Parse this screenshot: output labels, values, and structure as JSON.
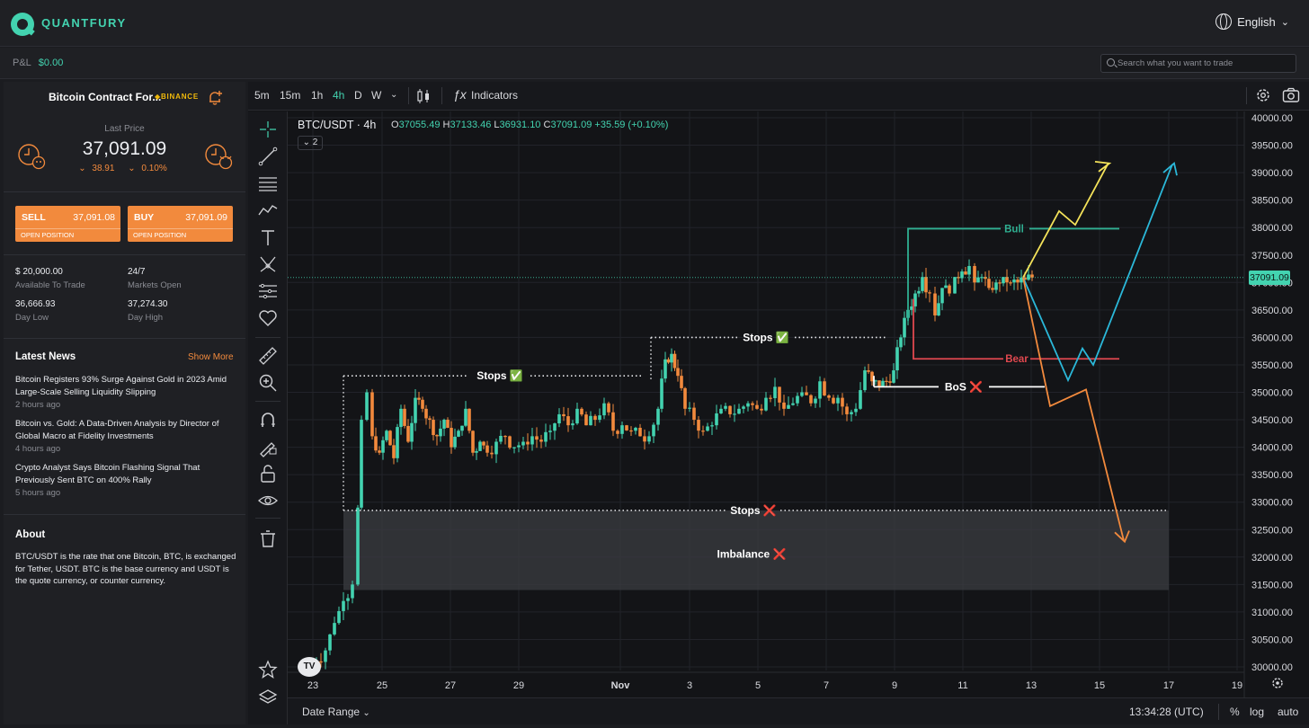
{
  "header": {
    "logo_text": "QUANTFURY",
    "language": "English"
  },
  "subbar": {
    "pnl_label": "P&L",
    "pnl_value": "$0.00",
    "search_placeholder": "Search what you want to trade"
  },
  "sidebar": {
    "instrument": "Bitcoin Contract For...",
    "exchange": "BINANCE",
    "last_price_label": "Last Price",
    "last_price": "37,091.09",
    "change_abs": "38.91",
    "change_pct": "0.10%",
    "sell": {
      "label": "SELL",
      "price": "37,091.08",
      "sub": "OPEN POSITION"
    },
    "buy": {
      "label": "BUY",
      "price": "37,091.09",
      "sub": "OPEN POSITION"
    },
    "stats": [
      {
        "value": "$ 20,000.00",
        "label": "Available To Trade"
      },
      {
        "value": "24/7",
        "label": "Markets Open"
      },
      {
        "value": "36,666.93",
        "label": "Day Low"
      },
      {
        "value": "37,274.30",
        "label": "Day High"
      }
    ],
    "news_title": "Latest News",
    "show_more": "Show More",
    "news": [
      {
        "headline": "Bitcoin Registers 93% Surge Against Gold in 2023 Amid Large-Scale Selling Liquidity Slipping",
        "time": "2 hours ago"
      },
      {
        "headline": "Bitcoin vs. Gold: A Data-Driven Analysis by Director of Global Macro at Fidelity Investments",
        "time": "4 hours ago"
      },
      {
        "headline": "Crypto Analyst Says Bitcoin Flashing Signal That Previously Sent BTC on 400% Rally",
        "time": "5 hours ago"
      }
    ],
    "about_title": "About",
    "about_text": "BTC/USDT is the rate that one Bitcoin, BTC, is exchanged for Tether, USDT. BTC is the base currency and USDT is the quote currency, or counter currency."
  },
  "toolbar": {
    "timeframes": [
      "5m",
      "15m",
      "1h",
      "4h",
      "D",
      "W"
    ],
    "active_timeframe": "4h",
    "indicators": "Indicators"
  },
  "chart": {
    "symbol": "BTC/USDT · 4h",
    "ohlc": {
      "o_label": "O",
      "o": "37055.49",
      "h_label": "H",
      "h": "37133.46",
      "l_label": "L",
      "l": "36931.10",
      "c_label": "C",
      "c": "37091.09",
      "change": "+35.59 (+0.10%)"
    },
    "collapse_count": "2",
    "last_price_tag": "37091.09",
    "date_range": "Date Range",
    "time": "13:34:28 (UTC)",
    "pct": "%",
    "log": "log",
    "auto": "auto"
  },
  "chart_data": {
    "type": "candlestick",
    "colors": {
      "up": "#43d3b0",
      "down": "#f28a3d",
      "background": "#131417"
    },
    "y_axis_ticks": [
      30000,
      30500,
      31000,
      31500,
      32000,
      32500,
      33000,
      33500,
      34000,
      34500,
      35000,
      35500,
      36000,
      36500,
      37000,
      37500,
      38000,
      38500,
      39000,
      39500,
      40000
    ],
    "ylim": [
      30000,
      40000
    ],
    "x_ticks": [
      "23",
      "25",
      "27",
      "29",
      "Nov",
      "3",
      "5",
      "7",
      "9",
      "11",
      "13",
      "15",
      "17",
      "19"
    ],
    "annotations": {
      "stops1": "Stops ✅",
      "stops2": "Stops ✅",
      "stops3": "Stops ❌",
      "imbalance": "Imbalance ❌",
      "bos": "BoS ❌",
      "bull": "Bull",
      "bear": "Bear"
    },
    "levels": {
      "stops1": 35300,
      "stops2": 36000,
      "stops3": 32850,
      "imbalance_top": 32850,
      "imbalance_bottom": 31400,
      "bos": 35100,
      "bull": 37980,
      "bear": 35610
    }
  }
}
